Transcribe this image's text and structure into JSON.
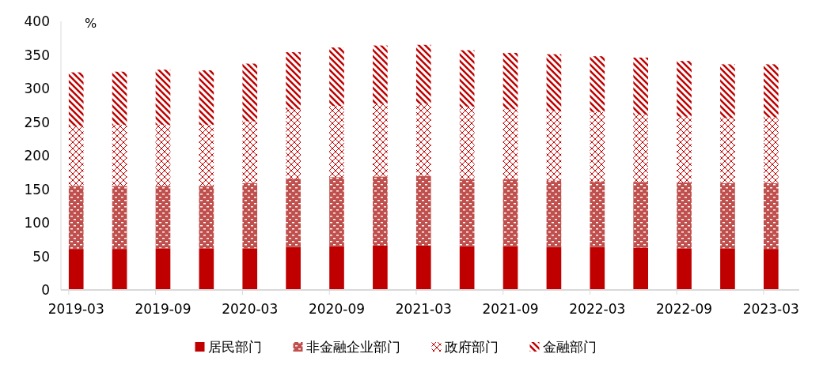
{
  "chart_data": {
    "type": "bar",
    "stacked": true,
    "ylabel": "%",
    "categories": [
      "2019-03",
      null,
      "2019-09",
      null,
      "2020-03",
      null,
      "2020-09",
      null,
      "2021-03",
      null,
      "2021-09",
      null,
      "2022-03",
      null,
      "2022-09",
      null,
      "2023-03"
    ],
    "series": [
      {
        "name": "居民部门",
        "color": "#c00000",
        "values": [
          61,
          61,
          62,
          62,
          62,
          64,
          65,
          66,
          66,
          65,
          65,
          64,
          64,
          63,
          62,
          62,
          61
        ]
      },
      {
        "name": "非金融企业部门",
        "color": "#c0504d",
        "values": [
          94,
          94,
          93,
          93,
          97,
          102,
          103,
          103,
          104,
          100,
          100,
          99,
          98,
          98,
          98,
          97,
          98
        ]
      },
      {
        "name": "政府部门",
        "color": "#c00000",
        "values": [
          89,
          91,
          91,
          91,
          92,
          103,
          106,
          108,
          107,
          108,
          104,
          104,
          103,
          100,
          98,
          97,
          98
        ]
      },
      {
        "name": "金融部门",
        "color": "#c00000",
        "values": [
          80,
          79,
          82,
          81,
          86,
          85,
          87,
          87,
          88,
          84,
          84,
          84,
          83,
          85,
          83,
          80,
          79
        ]
      }
    ],
    "ylim": [
      0,
      400
    ],
    "yticks": [
      0,
      50,
      100,
      150,
      200,
      250,
      300,
      350,
      400
    ],
    "grid": false,
    "legend": "bottom"
  }
}
